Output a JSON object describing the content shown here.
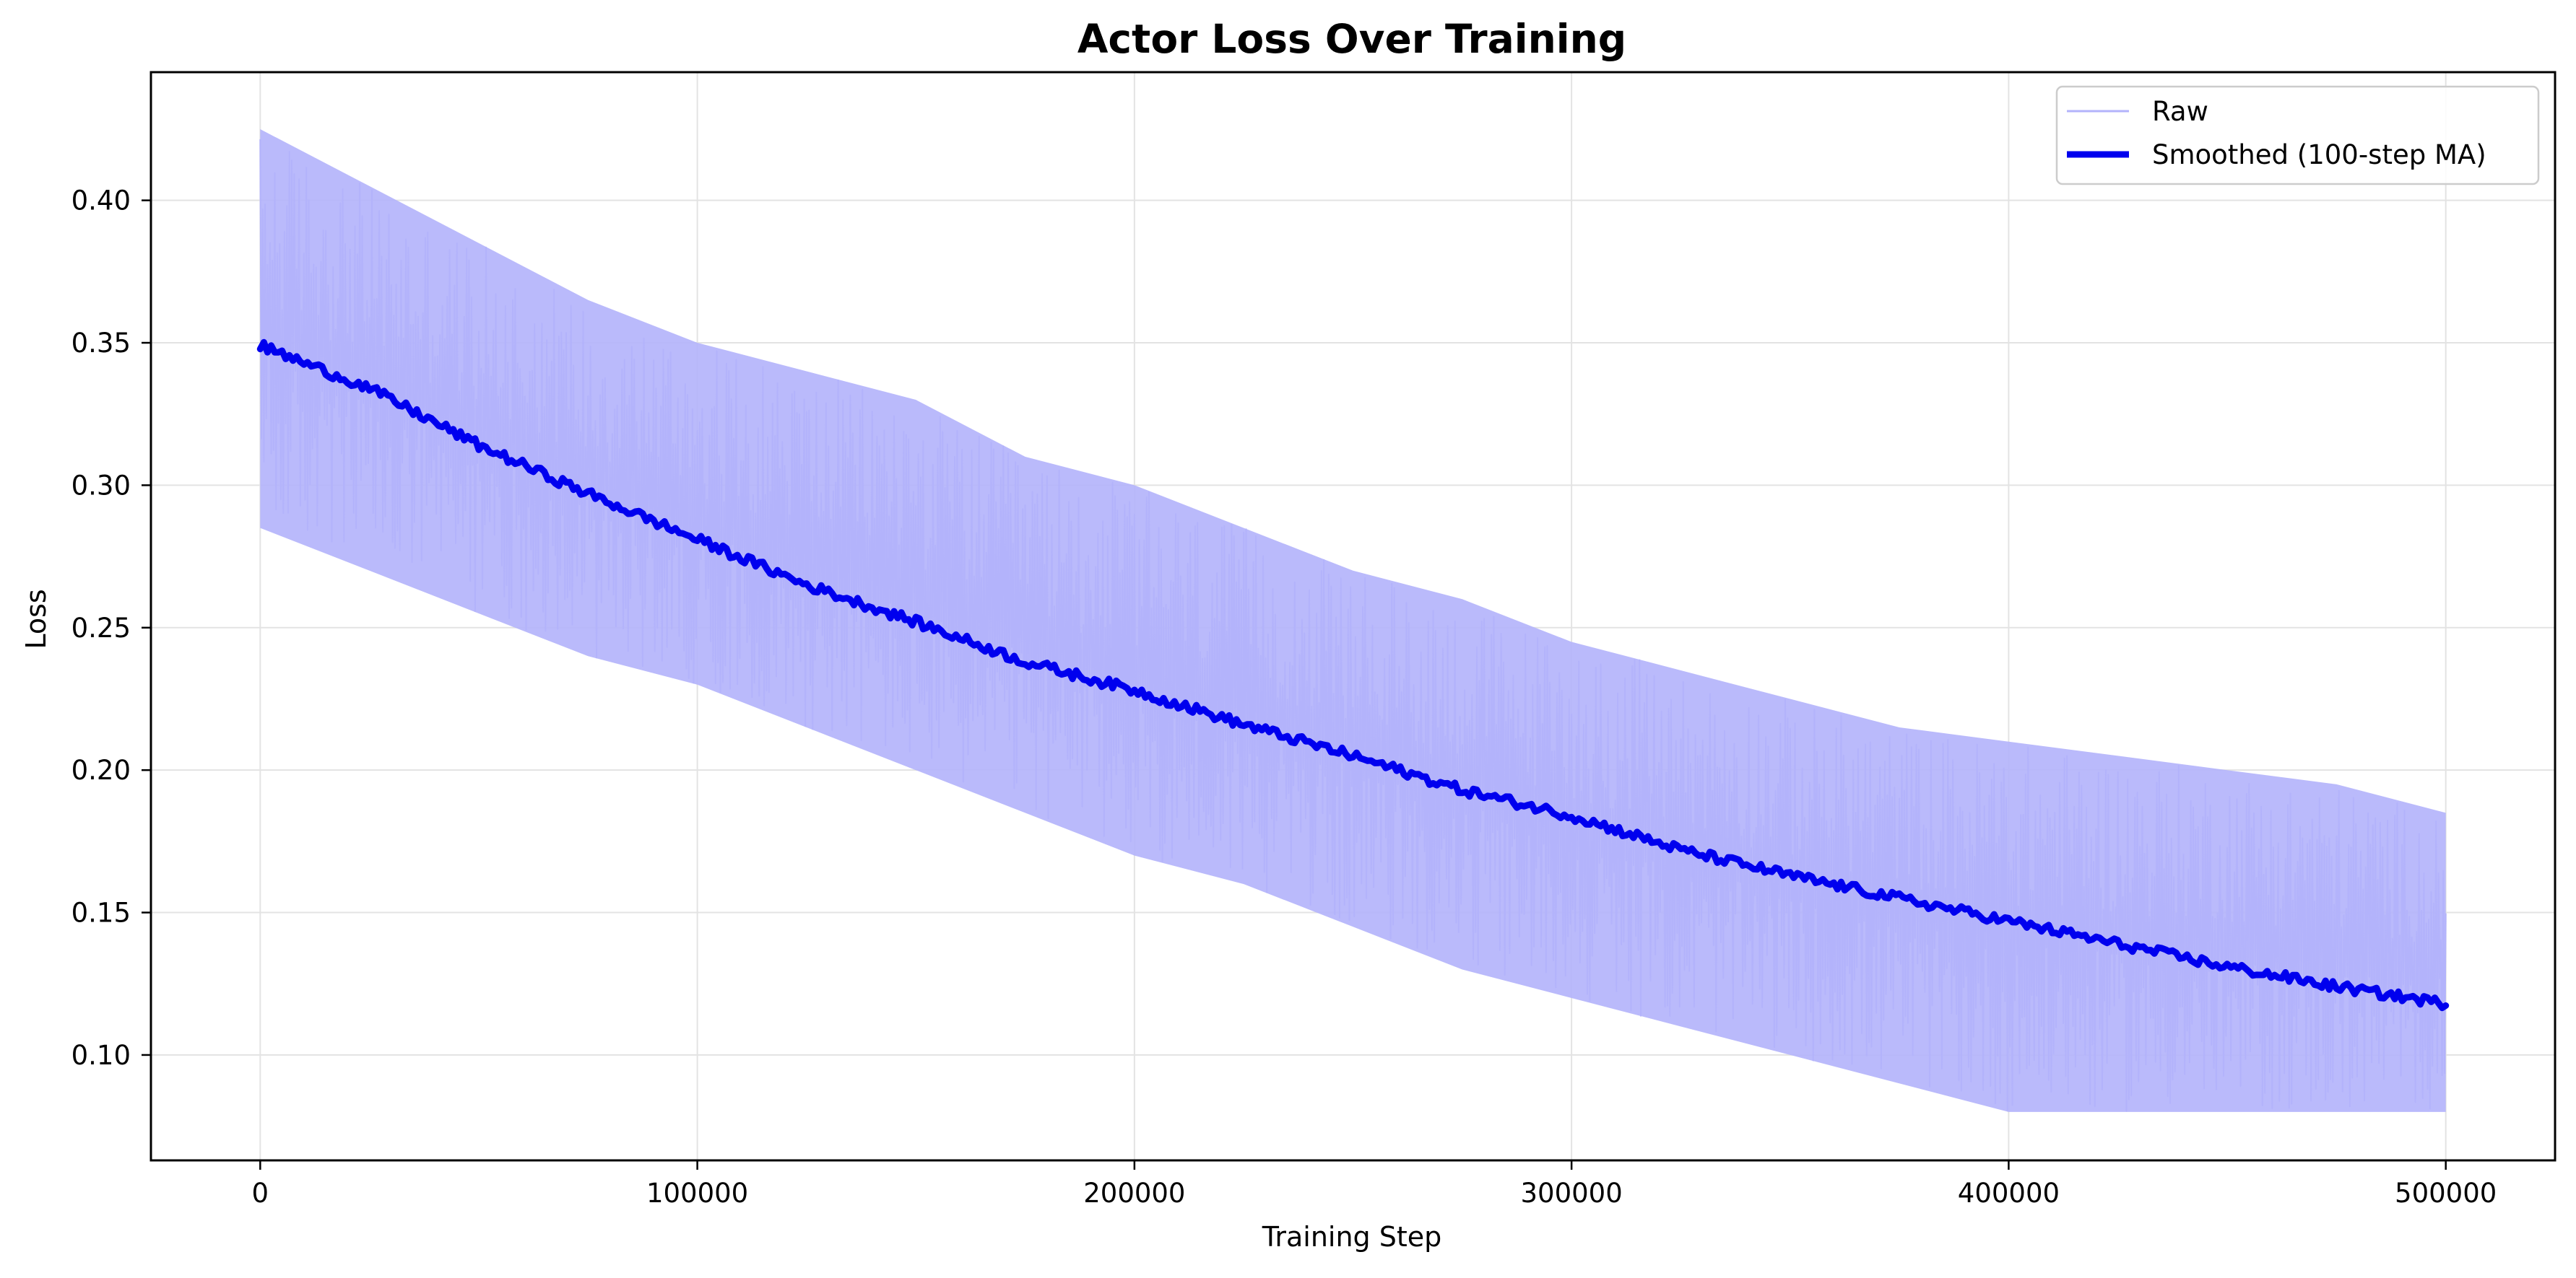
{
  "colors": {
    "raw_line": "#b3b3fb",
    "smoothed_line": "#0000ee",
    "grid": "#e3e3e3",
    "axis": "#000000",
    "background": "#ffffff"
  },
  "chart_data": {
    "type": "line",
    "title": "Actor Loss Over Training",
    "xlabel": "Training Step",
    "ylabel": "Loss",
    "xlim": [
      -25000,
      525000
    ],
    "ylim": [
      0.063,
      0.445
    ],
    "xticks": [
      0,
      100000,
      200000,
      300000,
      400000,
      500000
    ],
    "xtick_labels": [
      "0",
      "100000",
      "200000",
      "300000",
      "400000",
      "500000"
    ],
    "yticks": [
      0.1,
      0.15,
      0.2,
      0.25,
      0.3,
      0.35,
      0.4
    ],
    "ytick_labels": [
      "0.10",
      "0.15",
      "0.20",
      "0.25",
      "0.30",
      "0.35",
      "0.40"
    ],
    "grid": true,
    "legend": {
      "placement": "top-right",
      "entries": [
        "Raw",
        "Smoothed (100-step MA)"
      ]
    },
    "series": [
      {
        "name": "Raw",
        "style": "thin-light",
        "x": [
          0,
          25000,
          50000,
          75000,
          100000,
          125000,
          150000,
          175000,
          200000,
          225000,
          250000,
          275000,
          300000,
          325000,
          350000,
          375000,
          400000,
          425000,
          450000,
          475000,
          500000
        ],
        "min": [
          0.285,
          0.27,
          0.255,
          0.24,
          0.23,
          0.215,
          0.2,
          0.185,
          0.17,
          0.16,
          0.145,
          0.13,
          0.12,
          0.11,
          0.1,
          0.09,
          0.08,
          0.08,
          0.08,
          0.08,
          0.08
        ],
        "max": [
          0.425,
          0.405,
          0.385,
          0.365,
          0.35,
          0.34,
          0.33,
          0.31,
          0.3,
          0.285,
          0.27,
          0.26,
          0.245,
          0.235,
          0.225,
          0.215,
          0.21,
          0.205,
          0.2,
          0.195,
          0.185
        ]
      },
      {
        "name": "Smoothed (100-step MA)",
        "style": "thick-dark",
        "x": [
          0,
          25000,
          50000,
          75000,
          100000,
          125000,
          150000,
          175000,
          200000,
          225000,
          250000,
          275000,
          300000,
          325000,
          350000,
          375000,
          400000,
          425000,
          450000,
          475000,
          500000
        ],
        "y": [
          0.349,
          0.334,
          0.314,
          0.297,
          0.281,
          0.265,
          0.252,
          0.238,
          0.228,
          0.216,
          0.205,
          0.193,
          0.184,
          0.172,
          0.163,
          0.155,
          0.147,
          0.139,
          0.131,
          0.124,
          0.118
        ]
      }
    ]
  }
}
